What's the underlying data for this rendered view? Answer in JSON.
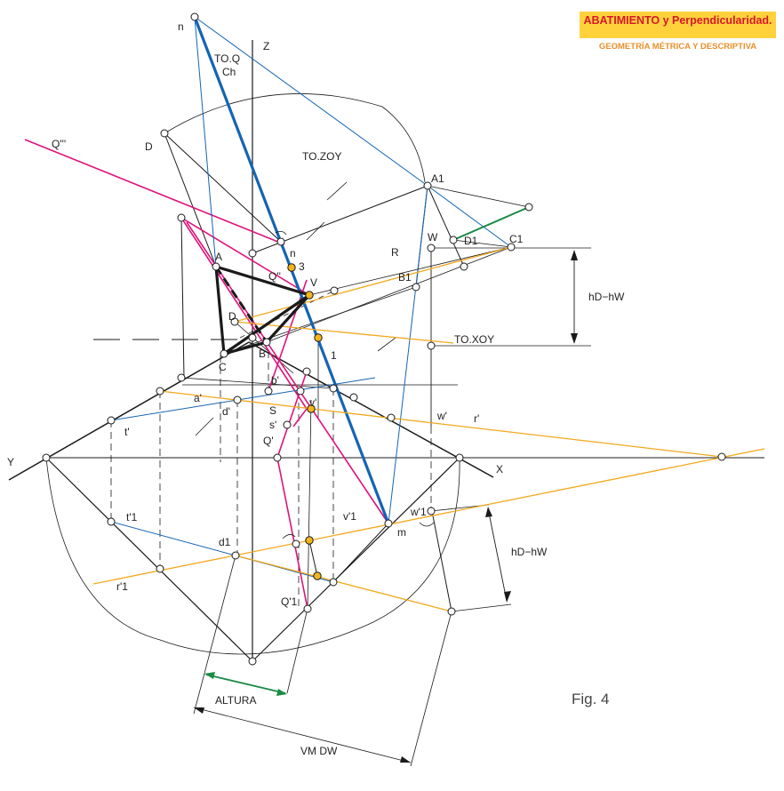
{
  "header": {
    "title": "ABATIMIENTO y Perpendicularidad.",
    "subtitle": "GEOMETRÍA MÉTRICA Y DESCRIPTIVA",
    "box_color": "#ffd23c",
    "title_color": "#d8182a",
    "subtitle_color": "#e8902a"
  },
  "figure_label": "Fig. 4",
  "colors": {
    "magenta": "#e0127a",
    "blue": "#1464b4",
    "orange": "#f3a81c",
    "green": "#1a8a45",
    "black": "#1a1a1a"
  },
  "labels": {
    "n_top": "n",
    "z_axis": "Z",
    "to_q": "TO.Q",
    "ch": "Ch",
    "to_zoy": "TO.ZOY",
    "d_upper": "D",
    "q_triple": "Q'''",
    "a1": "A1",
    "w": "W",
    "d1": "D1",
    "c1": "C1",
    "r": "R",
    "b1": "B1",
    "a": "A",
    "n_mid": "n",
    "three": "3",
    "q_double": "Q''",
    "v": "V",
    "d": "D",
    "one": "1",
    "to_xoy": "TO.XOY",
    "hd_hw_top": "hD−hW",
    "c": "C",
    "b": "B",
    "b_prime": "b'",
    "a_prime": "a'",
    "d_prime": "d'",
    "v_prime": "v'",
    "s": "S",
    "s_prime": "s'",
    "w_prime": "w'",
    "r_prime": "r'",
    "t_prime": "t'",
    "q_prime": "Q'",
    "y_axis": "Y",
    "x_axis": "X",
    "t1": "t'1",
    "v1": "v'1",
    "w1": "w'1",
    "m": "m",
    "d1_low": "d1",
    "hd_hw_bot": "hD−hW",
    "r1": "r'1",
    "q1": "Q'1",
    "altura": "ALTURA",
    "vm_dw": "VM  DW"
  }
}
